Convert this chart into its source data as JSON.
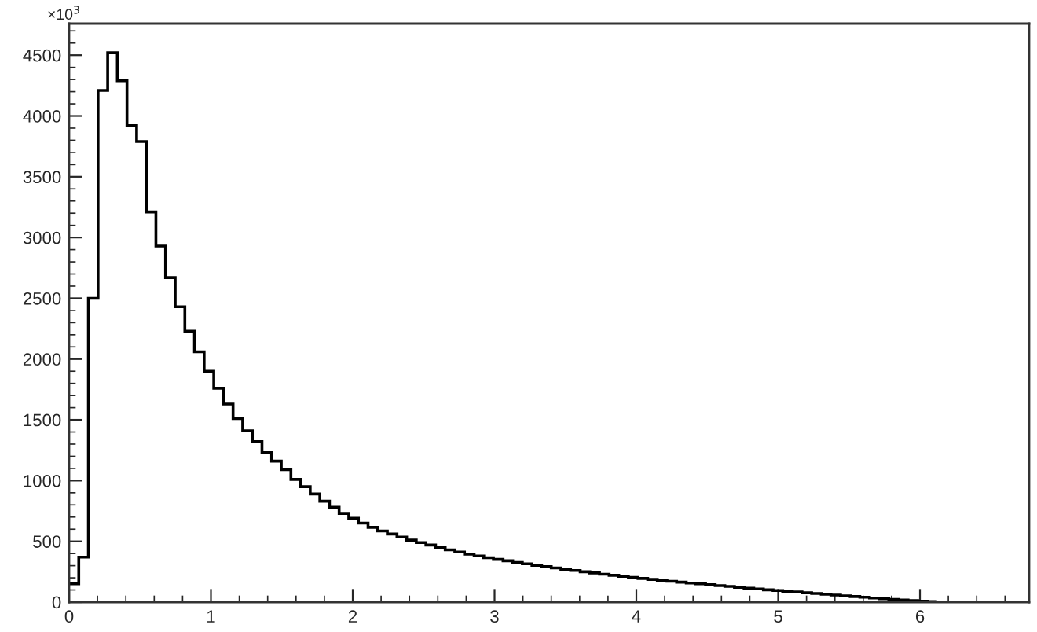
{
  "chart_data": {
    "type": "histogram",
    "bins": [
      0,
      0.068,
      0.136,
      0.204,
      0.272,
      0.34,
      0.408,
      0.476,
      0.544,
      0.612,
      0.68,
      0.748,
      0.816,
      0.884,
      0.952,
      1.02,
      1.088,
      1.156,
      1.224,
      1.292,
      1.36,
      1.428,
      1.496,
      1.564,
      1.632,
      1.7,
      1.768,
      1.836,
      1.904,
      1.972,
      2.04,
      2.108,
      2.176,
      2.244,
      2.312,
      2.38,
      2.448,
      2.516,
      2.584,
      2.652,
      2.72,
      2.788,
      2.856,
      2.924,
      2.992,
      3.06,
      3.128,
      3.196,
      3.264,
      3.332,
      3.4,
      3.468,
      3.536,
      3.604,
      3.672,
      3.74,
      3.808,
      3.876,
      3.944,
      4.012,
      4.08,
      4.148,
      4.216,
      4.284,
      4.352,
      4.42,
      4.488,
      4.556,
      4.624,
      4.692,
      4.76,
      4.828,
      4.896,
      4.964,
      5.032,
      5.1,
      5.168,
      5.236,
      5.304,
      5.372,
      5.44,
      5.508,
      5.576,
      5.644,
      5.712,
      5.78,
      5.848,
      5.916,
      5.984,
      6.052,
      6.12
    ],
    "values": [
      150,
      370,
      2500,
      4210,
      4520,
      4290,
      3920,
      3790,
      3210,
      2930,
      2670,
      2430,
      2230,
      2060,
      1900,
      1760,
      1630,
      1510,
      1410,
      1320,
      1230,
      1160,
      1090,
      1010,
      950,
      890,
      830,
      780,
      730,
      690,
      650,
      615,
      585,
      560,
      535,
      510,
      490,
      470,
      450,
      430,
      412,
      395,
      380,
      365,
      352,
      340,
      327,
      315,
      303,
      292,
      281,
      270,
      260,
      250,
      240,
      230,
      221,
      212,
      203,
      195,
      187,
      179,
      171,
      164,
      157,
      150,
      143,
      136,
      129,
      122,
      115,
      108,
      101,
      95,
      89,
      83,
      77,
      71,
      65,
      58,
      52,
      46,
      40,
      34,
      28,
      22,
      17,
      12,
      8,
      4
    ],
    "color": "#000000",
    "xlim": [
      0,
      6.77
    ],
    "xticks": [
      0,
      1,
      2,
      3,
      4,
      5,
      6
    ],
    "ylim": [
      0,
      4760
    ],
    "yticks": [
      0,
      500,
      1000,
      1500,
      2000,
      2500,
      3000,
      3500,
      4000,
      4500
    ],
    "annotations": [
      "×10$^{3}$"
    ],
    "grid": false
  }
}
